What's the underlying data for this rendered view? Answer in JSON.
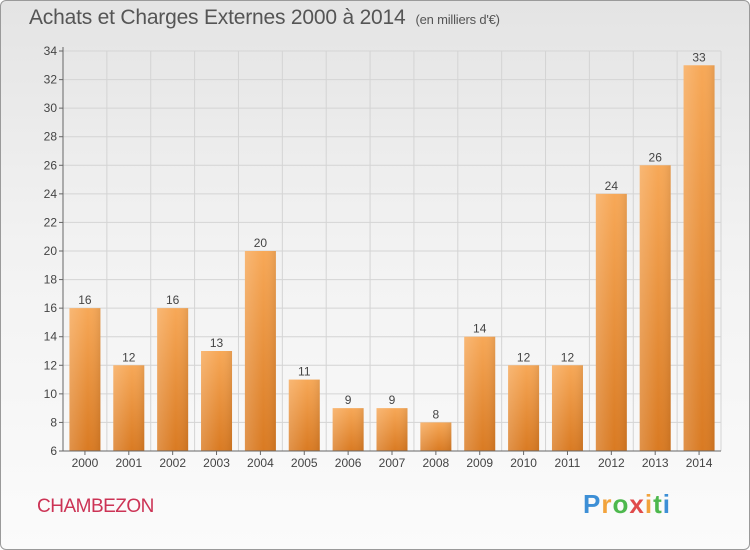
{
  "title": "Achats et Charges Externes 2000 à 2014",
  "unit": "(en milliers d'€)",
  "commune": "CHAMBEZON",
  "logo": "Proxiti",
  "colors": {
    "bar": "#f0923a",
    "bar_light": "#f7b062",
    "bar_dark": "#d27420",
    "town": "#cc3355"
  },
  "chart_data": {
    "type": "bar",
    "title": "Achats et Charges Externes 2000 à 2014",
    "subtitle": "(en milliers d'€)",
    "categories": [
      "2000",
      "2001",
      "2002",
      "2003",
      "2004",
      "2005",
      "2006",
      "2007",
      "2008",
      "2009",
      "2010",
      "2011",
      "2012",
      "2013",
      "2014"
    ],
    "values": [
      16,
      12,
      16,
      13,
      20,
      11,
      9,
      9,
      8,
      14,
      12,
      12,
      24,
      26,
      33
    ],
    "ylim": [
      6,
      34
    ],
    "yticks": [
      6,
      8,
      10,
      12,
      14,
      16,
      18,
      20,
      22,
      24,
      26,
      28,
      30,
      32,
      34
    ],
    "grid": true,
    "data_labels": true
  }
}
